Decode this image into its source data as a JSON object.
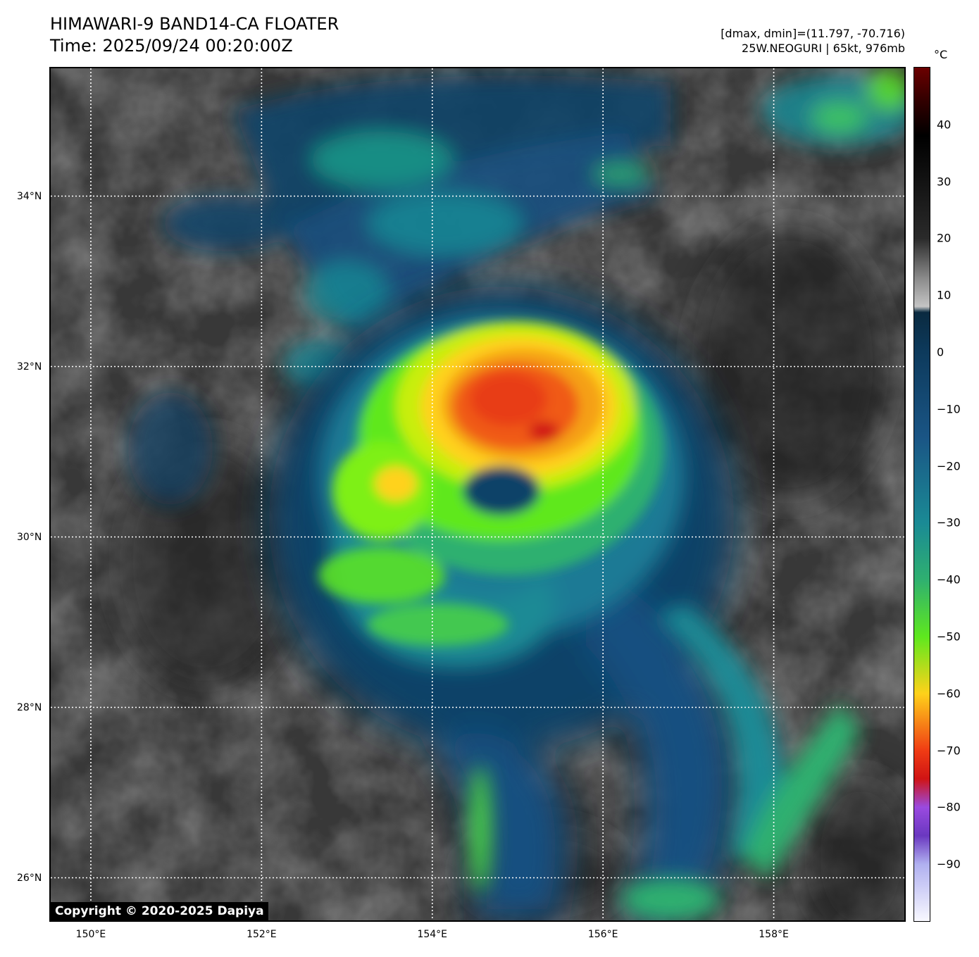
{
  "header": {
    "title_line1": "HIMAWARI-9 BAND14-CA FLOATER",
    "title_line2": "Time: 2025/09/24 00:20:00Z",
    "info_line1": "[dmax, dmin]=(11.797, -70.716)",
    "info_line2": "25W.NEOGURI | 65kt, 976mb"
  },
  "map": {
    "lon_range": [
      149.53,
      159.53
    ],
    "lat_range": [
      25.5,
      35.5
    ],
    "grid": true,
    "lat_ticks": [
      {
        "value": 34,
        "label": "34°N"
      },
      {
        "value": 32,
        "label": "32°N"
      },
      {
        "value": 30,
        "label": "30°N"
      },
      {
        "value": 28,
        "label": "28°N"
      },
      {
        "value": 26,
        "label": "26°N"
      }
    ],
    "lon_ticks": [
      {
        "value": 150,
        "label": "150°E"
      },
      {
        "value": 152,
        "label": "152°E"
      },
      {
        "value": 154,
        "label": "154°E"
      },
      {
        "value": 156,
        "label": "156°E"
      },
      {
        "value": 158,
        "label": "158°E"
      }
    ]
  },
  "colorbar": {
    "unit": "°C",
    "range": [
      -100,
      50
    ],
    "ticks": [
      40,
      30,
      20,
      10,
      0,
      -10,
      -20,
      -30,
      -40,
      -50,
      -60,
      -70,
      -80,
      -90
    ],
    "tick_labels": [
      "40",
      "30",
      "20",
      "10",
      "0",
      "−10",
      "−20",
      "−30",
      "−40",
      "−50",
      "−60",
      "−70",
      "−80",
      "−90"
    ],
    "stops": [
      {
        "value": 50,
        "color": "#6b0000"
      },
      {
        "value": 44,
        "color": "#300000"
      },
      {
        "value": 38,
        "color": "#000000"
      },
      {
        "value": 20,
        "color": "#2a2a2a"
      },
      {
        "value": 13,
        "color": "#8a8a8a"
      },
      {
        "value": 8,
        "color": "#c4c4c4"
      },
      {
        "value": 7,
        "color": "#0a2a40"
      },
      {
        "value": 0,
        "color": "#0d3a5c"
      },
      {
        "value": -15,
        "color": "#1a5585"
      },
      {
        "value": -30,
        "color": "#1a8a95"
      },
      {
        "value": -40,
        "color": "#2fb070"
      },
      {
        "value": -50,
        "color": "#5ee81e"
      },
      {
        "value": -60,
        "color": "#ffd21a"
      },
      {
        "value": -70,
        "color": "#f03c14"
      },
      {
        "value": -75,
        "color": "#d01414"
      },
      {
        "value": -80,
        "color": "#9a4ae0"
      },
      {
        "value": -85,
        "color": "#6a38c0"
      },
      {
        "value": -90,
        "color": "#b0b0f0"
      },
      {
        "value": -100,
        "color": "#f8f8ff"
      }
    ]
  },
  "copyright": "Copyright © 2020-2025 Dapiya"
}
